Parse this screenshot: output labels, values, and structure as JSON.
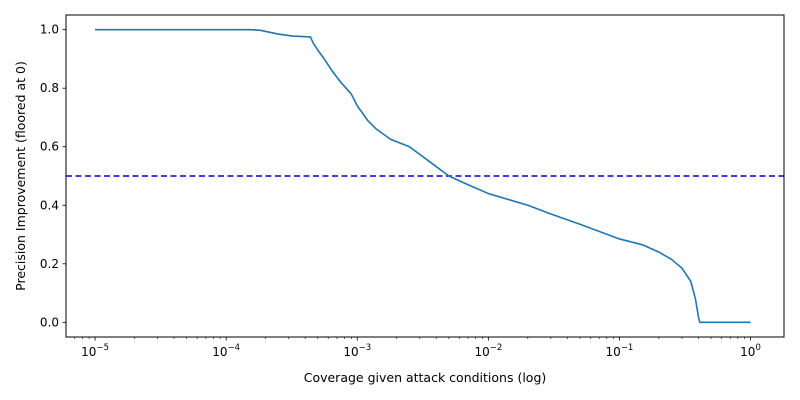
{
  "chart_data": {
    "type": "line",
    "xlabel": "Coverage given attack conditions (log)",
    "ylabel": "Precision Improvement (floored at 0)",
    "xscale": "log",
    "xlim": [
      6e-06,
      1.8
    ],
    "ylim": [
      -0.05,
      1.05
    ],
    "grid": false,
    "x_ticks": [
      {
        "value": 1e-05,
        "base": "10",
        "exp": "−5"
      },
      {
        "value": 0.0001,
        "base": "10",
        "exp": "−4"
      },
      {
        "value": 0.001,
        "base": "10",
        "exp": "−3"
      },
      {
        "value": 0.01,
        "base": "10",
        "exp": "−2"
      },
      {
        "value": 0.1,
        "base": "10",
        "exp": "−1"
      },
      {
        "value": 1,
        "base": "10",
        "exp": "0"
      }
    ],
    "y_ticks": [
      {
        "value": 0.0,
        "label": "0.0"
      },
      {
        "value": 0.2,
        "label": "0.2"
      },
      {
        "value": 0.4,
        "label": "0.4"
      },
      {
        "value": 0.6,
        "label": "0.6"
      },
      {
        "value": 0.8,
        "label": "0.8"
      },
      {
        "value": 1.0,
        "label": "1.0"
      }
    ],
    "series": [
      {
        "color": "#1f77b4",
        "x": [
          1e-05,
          0.0001,
          0.00015,
          0.00018,
          0.00022,
          0.00025,
          0.00032,
          0.00044,
          0.00046,
          0.0005,
          0.00056,
          0.00064,
          0.00075,
          0.0009,
          0.001,
          0.0012,
          0.0014,
          0.0018,
          0.0025,
          0.0033,
          0.005,
          0.007,
          0.01,
          0.02,
          0.03,
          0.05,
          0.1,
          0.15,
          0.2,
          0.25,
          0.3,
          0.35,
          0.38,
          0.4,
          0.41,
          1.0
        ],
        "y": [
          1.0,
          1.0,
          1.0,
          0.998,
          0.99,
          0.985,
          0.978,
          0.975,
          0.955,
          0.93,
          0.9,
          0.86,
          0.82,
          0.78,
          0.74,
          0.69,
          0.66,
          0.625,
          0.6,
          0.56,
          0.5,
          0.47,
          0.44,
          0.4,
          0.37,
          0.335,
          0.285,
          0.265,
          0.24,
          0.215,
          0.185,
          0.14,
          0.08,
          0.02,
          0.0,
          0.0
        ]
      }
    ],
    "reference_lines": [
      {
        "orientation": "horizontal",
        "y": 0.5,
        "color": "#0000cc",
        "style": "dashed"
      }
    ]
  }
}
